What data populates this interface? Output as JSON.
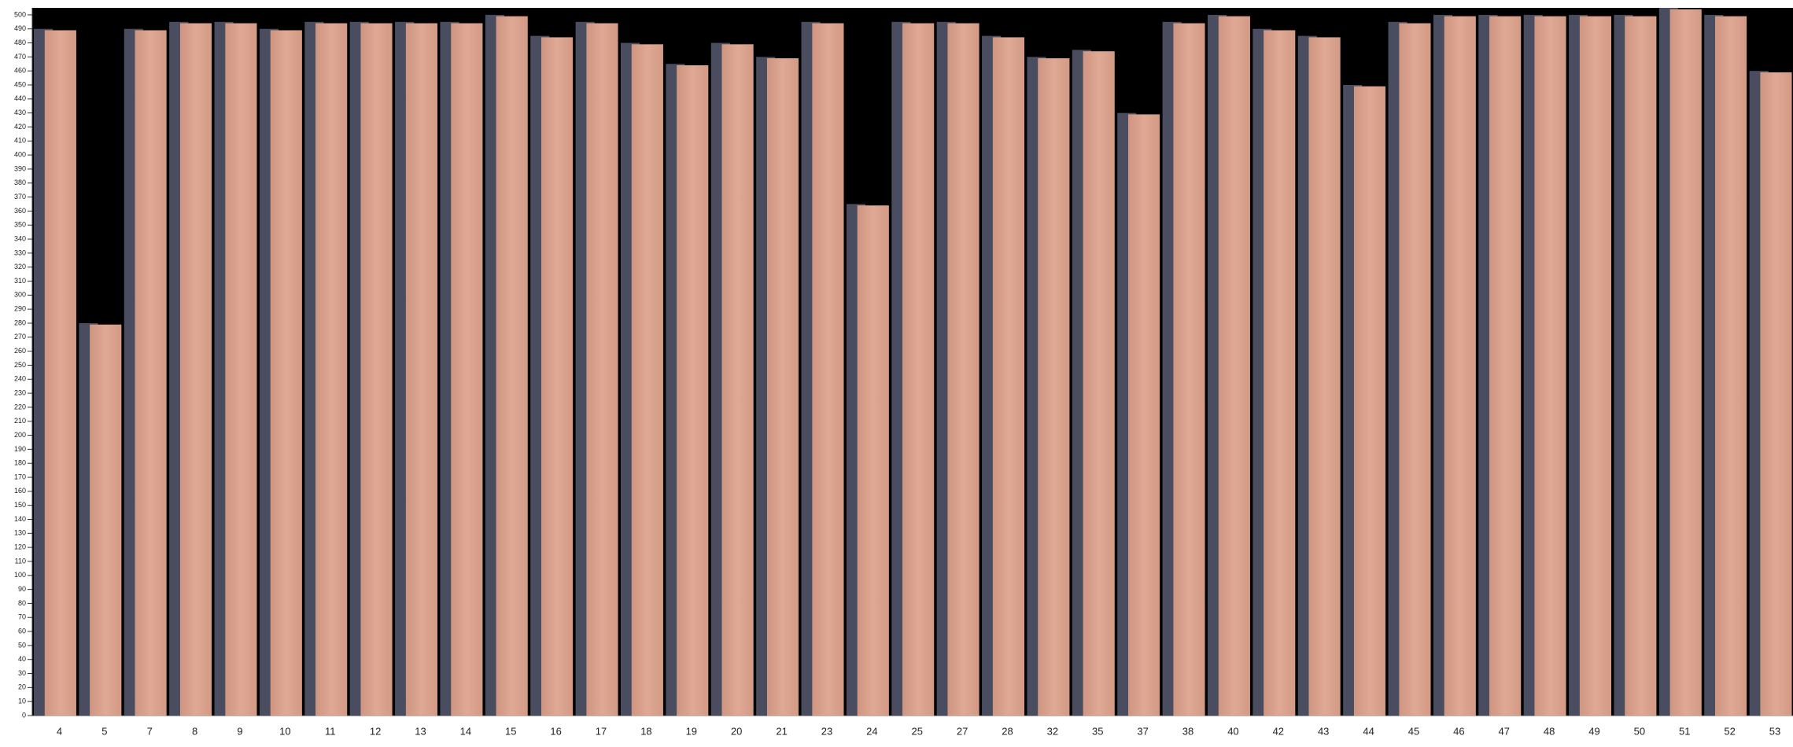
{
  "chart_data": {
    "type": "bar",
    "categories": [
      "4",
      "5",
      "7",
      "8",
      "9",
      "10",
      "11",
      "12",
      "13",
      "14",
      "15",
      "16",
      "17",
      "18",
      "19",
      "20",
      "21",
      "23",
      "24",
      "25",
      "27",
      "28",
      "32",
      "35",
      "37",
      "38",
      "40",
      "42",
      "43",
      "44",
      "45",
      "46",
      "47",
      "48",
      "49",
      "50",
      "51",
      "52",
      "53"
    ],
    "values": [
      490,
      280,
      490,
      495,
      495,
      490,
      495,
      495,
      495,
      495,
      500,
      485,
      495,
      480,
      465,
      480,
      470,
      495,
      365,
      495,
      495,
      485,
      470,
      475,
      430,
      495,
      500,
      490,
      485,
      450,
      495,
      500,
      500,
      500,
      500,
      500,
      505,
      500,
      460
    ],
    "color": "#d7a089",
    "ylim": [
      0,
      505
    ],
    "yticks": [
      0,
      10,
      20,
      30,
      40,
      50,
      60,
      70,
      80,
      90,
      100,
      110,
      120,
      130,
      140,
      150,
      160,
      170,
      180,
      190,
      200,
      210,
      220,
      230,
      240,
      250,
      260,
      270,
      280,
      290,
      300,
      310,
      320,
      330,
      340,
      350,
      360,
      370,
      380,
      390,
      400,
      410,
      420,
      430,
      440,
      450,
      460,
      470,
      480,
      490,
      500
    ]
  }
}
